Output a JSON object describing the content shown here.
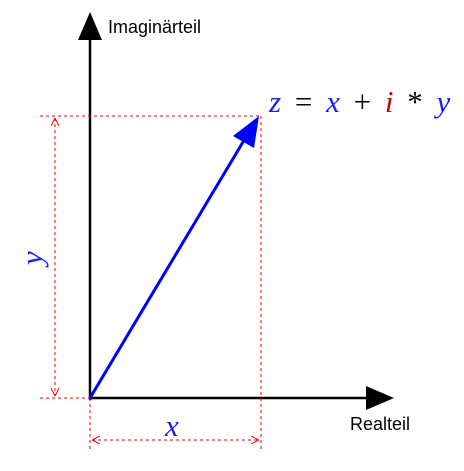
{
  "axes": {
    "imaginary_label": "Imaginärteil",
    "real_label": "Realteil"
  },
  "vector_labels": {
    "x": "x",
    "y": "y"
  },
  "equation": {
    "z": "z",
    "equals": "=",
    "x": "x",
    "plus": "+",
    "i": "i",
    "times": "*",
    "y": "y"
  },
  "colors": {
    "axes": "#000000",
    "vector": "#0000ff",
    "guides": "#ff0000",
    "imaginary_unit": "#cc0000",
    "variables": "#1a1aff"
  }
}
